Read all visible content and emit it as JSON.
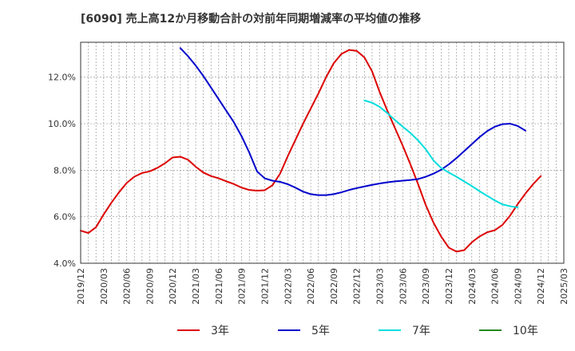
{
  "chart_data": {
    "type": "line",
    "title": "[6090]  売上高12か月移動合計の対前年同期増減率の平均値の推移",
    "xlabel": "",
    "ylabel": "",
    "x_start": "2019/12",
    "x_end": "2025/03",
    "x_ticks": [
      "2019/12",
      "2020/03",
      "2020/06",
      "2020/09",
      "2020/12",
      "2021/03",
      "2021/06",
      "2021/09",
      "2021/12",
      "2022/03",
      "2022/06",
      "2022/09",
      "2022/12",
      "2023/03",
      "2023/06",
      "2023/09",
      "2023/12",
      "2024/03",
      "2024/06",
      "2024/09",
      "2024/12",
      "2025/03"
    ],
    "ylim": [
      4.0,
      13.5
    ],
    "y_ticks": [
      4.0,
      6.0,
      8.0,
      10.0,
      12.0
    ],
    "y_tick_labels": [
      "4.0%",
      "6.0%",
      "8.0%",
      "10.0%",
      "12.0%"
    ],
    "grid": true,
    "legend_position": "bottom",
    "series": [
      {
        "name": "3年",
        "color": "#dd0000",
        "start": "2019/12",
        "values": [
          5.4,
          5.3,
          5.55,
          6.1,
          6.6,
          7.05,
          7.45,
          7.72,
          7.88,
          7.95,
          8.1,
          8.3,
          8.55,
          8.58,
          8.45,
          8.15,
          7.9,
          7.75,
          7.65,
          7.52,
          7.4,
          7.25,
          7.15,
          7.12,
          7.14,
          7.35,
          7.85,
          8.6,
          9.3,
          10.0,
          10.65,
          11.3,
          12.0,
          12.6,
          13.0,
          13.17,
          13.13,
          12.85,
          12.25,
          11.35,
          10.55,
          9.8,
          9.05,
          8.25,
          7.4,
          6.5,
          5.75,
          5.15,
          4.67,
          4.5,
          4.56,
          4.9,
          5.15,
          5.33,
          5.42,
          5.65,
          6.05,
          6.55,
          7.0,
          7.4,
          7.75
        ]
      },
      {
        "name": "5年",
        "color": "#0000cc",
        "start": "2021/01",
        "values": [
          13.25,
          12.9,
          12.5,
          12.05,
          11.55,
          11.05,
          10.55,
          10.05,
          9.45,
          8.75,
          7.95,
          7.65,
          7.55,
          7.5,
          7.4,
          7.25,
          7.08,
          6.97,
          6.93,
          6.93,
          6.97,
          7.05,
          7.15,
          7.23,
          7.3,
          7.37,
          7.43,
          7.48,
          7.52,
          7.55,
          7.58,
          7.62,
          7.72,
          7.85,
          8.02,
          8.25,
          8.52,
          8.82,
          9.12,
          9.42,
          9.68,
          9.87,
          9.98,
          10.0,
          9.9,
          9.7
        ]
      },
      {
        "name": "7年",
        "color": "#00dddd",
        "start": "2023/01",
        "values": [
          11.0,
          10.9,
          10.72,
          10.45,
          10.15,
          9.87,
          9.6,
          9.28,
          8.9,
          8.42,
          8.1,
          7.9,
          7.72,
          7.52,
          7.32,
          7.1,
          6.9,
          6.7,
          6.53,
          6.45,
          6.4
        ]
      },
      {
        "name": "10年",
        "color": "#228822",
        "start": "2024/12",
        "values": []
      }
    ]
  }
}
